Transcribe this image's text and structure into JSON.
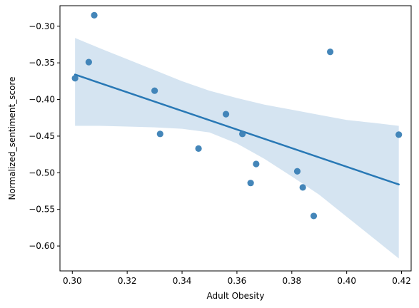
{
  "chart_data": {
    "type": "scatter",
    "title": "",
    "xlabel": "Adult Obesity",
    "ylabel": "Normalized_sentiment_score",
    "xlim": [
      0.2955,
      0.4235
    ],
    "ylim": [
      -0.634,
      -0.272
    ],
    "x_ticks": [
      0.3,
      0.32,
      0.34,
      0.36,
      0.38,
      0.4,
      0.42
    ],
    "x_tick_labels": [
      "0.30",
      "0.32",
      "0.34",
      "0.36",
      "0.38",
      "0.40",
      "0.42"
    ],
    "y_ticks": [
      -0.3,
      -0.35,
      -0.4,
      -0.45,
      -0.5,
      -0.55,
      -0.6
    ],
    "y_tick_labels": [
      "−0.30",
      "−0.35",
      "−0.40",
      "−0.45",
      "−0.50",
      "−0.55",
      "−0.60"
    ],
    "grid": false,
    "points": [
      {
        "x": 0.301,
        "y": -0.371
      },
      {
        "x": 0.306,
        "y": -0.349
      },
      {
        "x": 0.308,
        "y": -0.285
      },
      {
        "x": 0.33,
        "y": -0.388
      },
      {
        "x": 0.332,
        "y": -0.447
      },
      {
        "x": 0.346,
        "y": -0.467
      },
      {
        "x": 0.356,
        "y": -0.42
      },
      {
        "x": 0.362,
        "y": -0.447
      },
      {
        "x": 0.365,
        "y": -0.514
      },
      {
        "x": 0.367,
        "y": -0.488
      },
      {
        "x": 0.382,
        "y": -0.498
      },
      {
        "x": 0.384,
        "y": -0.52
      },
      {
        "x": 0.388,
        "y": -0.559
      },
      {
        "x": 0.394,
        "y": -0.335
      },
      {
        "x": 0.419,
        "y": -0.448
      }
    ],
    "regression": {
      "x_start": 0.301,
      "y_start": -0.366,
      "x_end": 0.419,
      "y_end": -0.516
    },
    "confidence_band": {
      "x": [
        0.301,
        0.31,
        0.32,
        0.33,
        0.34,
        0.35,
        0.36,
        0.37,
        0.38,
        0.39,
        0.4,
        0.41,
        0.419
      ],
      "upper": [
        -0.316,
        -0.33,
        -0.345,
        -0.36,
        -0.375,
        -0.388,
        -0.398,
        -0.407,
        -0.414,
        -0.421,
        -0.428,
        -0.432,
        -0.436
      ],
      "lower": [
        -0.436,
        -0.436,
        -0.437,
        -0.438,
        -0.44,
        -0.445,
        -0.46,
        -0.481,
        -0.505,
        -0.53,
        -0.56,
        -0.59,
        -0.617
      ]
    },
    "colors": {
      "points": "#3a7fb5",
      "line": "#2878b5",
      "band": "#c7dbec"
    }
  }
}
